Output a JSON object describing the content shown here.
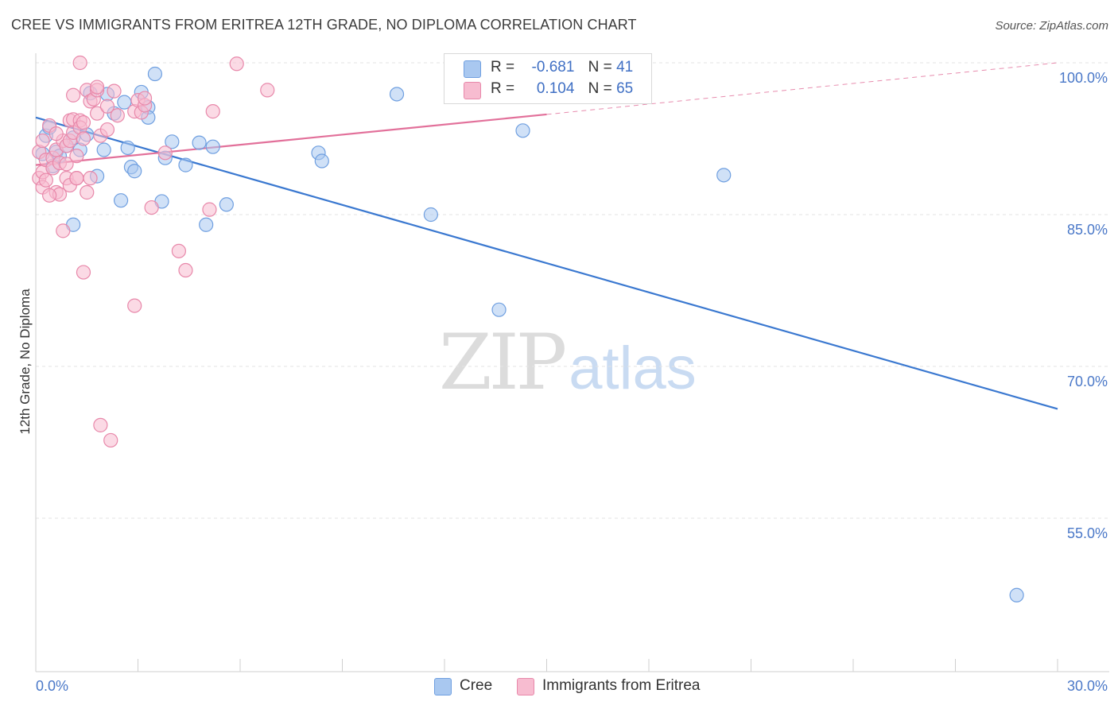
{
  "title": "CREE VS IMMIGRANTS FROM ERITREA 12TH GRADE, NO DIPLOMA CORRELATION CHART",
  "source": "Source: ZipAtlas.com",
  "watermark": {
    "part1": "ZIP",
    "part2": "atlas"
  },
  "legend_stats": [
    {
      "r_label": "R =",
      "r_value": "-0.681",
      "n_label": "N =",
      "n_value": "41",
      "color": "#a9c8f0",
      "border": "#6f9fe0"
    },
    {
      "r_label": "R =",
      "r_value": "0.104",
      "n_label": "N =",
      "n_value": "65",
      "color": "#f7bcd0",
      "border": "#e888aa"
    }
  ],
  "chart_data": {
    "type": "scatter",
    "title": "CREE VS IMMIGRANTS FROM ERITREA 12TH GRADE, NO DIPLOMA CORRELATION CHART",
    "xlabel": "",
    "ylabel": "12th Grade, No Diploma",
    "xlim": [
      0,
      30
    ],
    "ylim": [
      41,
      101
    ],
    "x_tick_labels": [
      "0.0%",
      "30.0%"
    ],
    "y_ticks": [
      100,
      85,
      70,
      55
    ],
    "y_tick_labels": [
      "100.0%",
      "85.0%",
      "70.0%",
      "55.0%"
    ],
    "grid": true,
    "legend_position": "bottom",
    "series": [
      {
        "name": "Cree",
        "color": "#a9c8f0",
        "line_color": "#3a78d0",
        "trend": {
          "x0": 0.0,
          "y0": 94.6,
          "x1": 30.0,
          "y1": 65.8,
          "dashed_to": null
        },
        "points": [
          [
            0.3,
            92.8
          ],
          [
            0.4,
            93.6
          ],
          [
            0.6,
            91.2
          ],
          [
            0.7,
            90.8
          ],
          [
            0.9,
            91.8
          ],
          [
            1.1,
            92.6
          ],
          [
            1.1,
            84.0
          ],
          [
            1.3,
            91.4
          ],
          [
            1.5,
            92.9
          ],
          [
            1.6,
            97.0
          ],
          [
            1.8,
            88.8
          ],
          [
            2.0,
            91.4
          ],
          [
            2.1,
            96.9
          ],
          [
            2.3,
            95.0
          ],
          [
            2.5,
            86.4
          ],
          [
            2.6,
            96.1
          ],
          [
            2.7,
            91.6
          ],
          [
            2.8,
            89.7
          ],
          [
            2.9,
            89.3
          ],
          [
            3.1,
            97.1
          ],
          [
            3.3,
            95.6
          ],
          [
            3.3,
            94.6
          ],
          [
            3.5,
            98.9
          ],
          [
            3.7,
            86.3
          ],
          [
            3.8,
            90.6
          ],
          [
            4.0,
            92.2
          ],
          [
            4.4,
            89.9
          ],
          [
            4.8,
            92.1
          ],
          [
            5.0,
            84.0
          ],
          [
            5.2,
            91.7
          ],
          [
            5.6,
            86.0
          ],
          [
            8.3,
            91.1
          ],
          [
            8.4,
            90.3
          ],
          [
            10.6,
            96.9
          ],
          [
            11.6,
            85.0
          ],
          [
            13.6,
            75.6
          ],
          [
            14.3,
            93.3
          ],
          [
            20.2,
            88.9
          ],
          [
            28.8,
            47.4
          ],
          [
            0.2,
            91.0
          ],
          [
            0.5,
            89.8
          ]
        ]
      },
      {
        "name": "Immigrants from Eritrea",
        "color": "#f7bcd0",
        "line_color": "#e2709a",
        "trend": {
          "x0": 0.0,
          "y0": 89.9,
          "x1": 15.0,
          "y1": 94.9,
          "dashed_to": [
            30.0,
            100.0
          ]
        },
        "points": [
          [
            0.1,
            91.2
          ],
          [
            0.1,
            88.6
          ],
          [
            0.2,
            92.3
          ],
          [
            0.2,
            89.2
          ],
          [
            0.2,
            87.7
          ],
          [
            0.3,
            90.4
          ],
          [
            0.3,
            88.4
          ],
          [
            0.4,
            93.8
          ],
          [
            0.5,
            90.6
          ],
          [
            0.5,
            89.6
          ],
          [
            0.6,
            91.4
          ],
          [
            0.6,
            87.2
          ],
          [
            0.7,
            90.1
          ],
          [
            0.7,
            87.0
          ],
          [
            0.8,
            83.4
          ],
          [
            0.8,
            92.3
          ],
          [
            0.9,
            91.8
          ],
          [
            0.9,
            88.6
          ],
          [
            1.0,
            94.3
          ],
          [
            1.0,
            92.3
          ],
          [
            1.0,
            87.9
          ],
          [
            1.1,
            96.8
          ],
          [
            1.1,
            94.4
          ],
          [
            1.1,
            93.1
          ],
          [
            1.2,
            88.6
          ],
          [
            1.2,
            88.6
          ],
          [
            1.3,
            100.0
          ],
          [
            1.3,
            94.3
          ],
          [
            1.3,
            93.6
          ],
          [
            1.4,
            92.5
          ],
          [
            1.4,
            94.1
          ],
          [
            1.4,
            79.3
          ],
          [
            1.5,
            87.2
          ],
          [
            1.5,
            97.3
          ],
          [
            1.6,
            96.2
          ],
          [
            1.7,
            96.4
          ],
          [
            1.8,
            97.3
          ],
          [
            1.8,
            97.6
          ],
          [
            1.8,
            95.0
          ],
          [
            1.9,
            92.8
          ],
          [
            1.9,
            64.2
          ],
          [
            2.1,
            95.7
          ],
          [
            2.1,
            93.4
          ],
          [
            2.2,
            62.7
          ],
          [
            2.3,
            97.2
          ],
          [
            2.4,
            94.8
          ],
          [
            2.9,
            95.2
          ],
          [
            2.9,
            76.0
          ],
          [
            3.0,
            96.3
          ],
          [
            3.1,
            95.1
          ],
          [
            3.2,
            95.8
          ],
          [
            3.2,
            96.5
          ],
          [
            3.4,
            85.7
          ],
          [
            3.8,
            91.1
          ],
          [
            4.2,
            81.4
          ],
          [
            4.4,
            79.5
          ],
          [
            5.1,
            85.5
          ],
          [
            5.2,
            95.2
          ],
          [
            5.9,
            99.9
          ],
          [
            6.8,
            97.3
          ],
          [
            0.9,
            90.0
          ],
          [
            1.6,
            88.6
          ],
          [
            0.4,
            86.9
          ],
          [
            0.6,
            93.0
          ],
          [
            1.2,
            90.8
          ]
        ]
      }
    ]
  }
}
